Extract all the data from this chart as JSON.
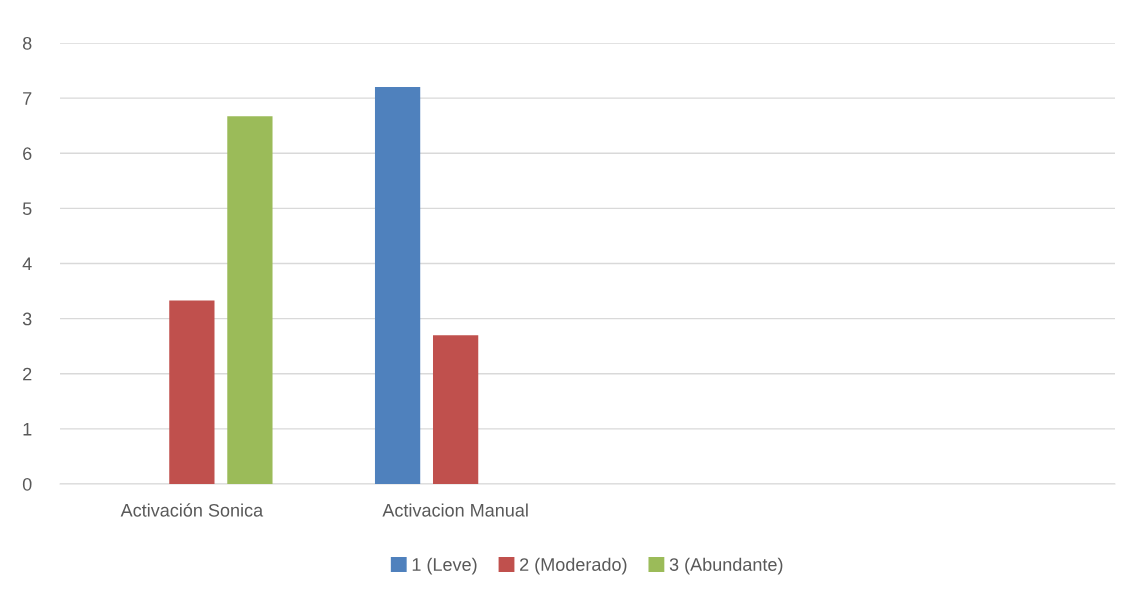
{
  "chart_data": {
    "type": "bar",
    "categories": [
      "Activación Sonica",
      "Activacion Manual",
      null,
      null
    ],
    "series": [
      {
        "name": "1 (Leve)",
        "color": "#4f81bd",
        "values": [
          null,
          7.2,
          null,
          null
        ]
      },
      {
        "name": "2 (Moderado)",
        "color": "#c0504d",
        "values": [
          3.33,
          2.7,
          null,
          null
        ]
      },
      {
        "name": "3 (Abundante)",
        "color": "#9bbb59",
        "values": [
          6.67,
          null,
          null,
          null
        ]
      }
    ],
    "ylim": [
      0,
      8
    ],
    "yticks": [
      0,
      1,
      2,
      3,
      4,
      5,
      6,
      7,
      8
    ],
    "grid": "y",
    "legend": "bottom"
  }
}
